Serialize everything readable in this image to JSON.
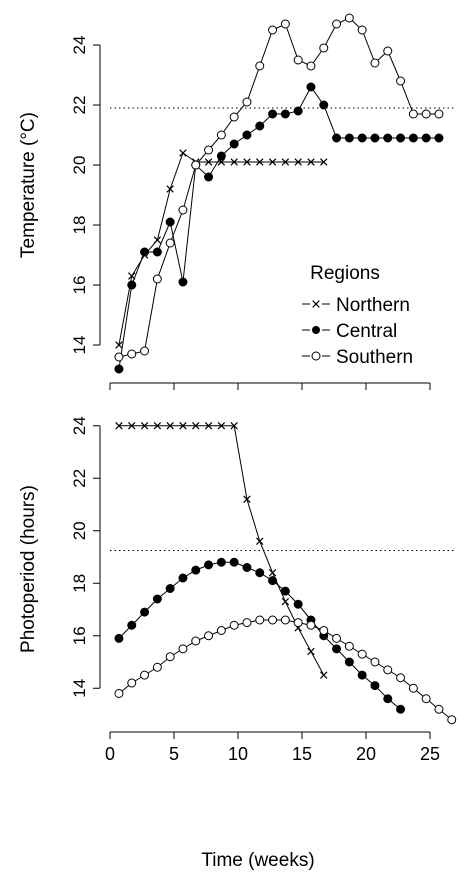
{
  "chart_data": [
    {
      "type": "line",
      "ylabel": "Temperature (°C)",
      "xlabel": "",
      "xlim": [
        0,
        27.5
      ],
      "ylim": [
        13,
        25.5
      ],
      "yticks": [
        14,
        16,
        18,
        20,
        22,
        24
      ],
      "xticks": [
        0,
        5,
        10,
        15,
        20,
        25
      ],
      "show_x_tick_labels": false,
      "grid": false,
      "reference_line": {
        "y": 21.9,
        "style": "dotted"
      },
      "legend": {
        "title": "Regions",
        "placement": "bottom-right"
      },
      "series": [
        {
          "name": "Northern",
          "marker": "x",
          "x": [
            0.7,
            1.7,
            2.7,
            3.7,
            4.7,
            5.7,
            6.7,
            7.7,
            8.7,
            9.7,
            10.7,
            11.7,
            12.7,
            13.7,
            14.7,
            15.7,
            16.7
          ],
          "y": [
            14.0,
            16.3,
            17.0,
            17.5,
            19.2,
            20.4,
            20.1,
            20.1,
            20.1,
            20.1,
            20.1,
            20.1,
            20.1,
            20.1,
            20.1,
            20.1,
            20.1
          ]
        },
        {
          "name": "Central",
          "marker": "filled-circle",
          "x": [
            0.7,
            1.7,
            2.7,
            3.7,
            4.7,
            5.7,
            6.7,
            7.7,
            8.7,
            9.7,
            10.7,
            11.7,
            12.7,
            13.7,
            14.7,
            15.7,
            16.7,
            17.7,
            18.7,
            19.7,
            20.7,
            21.7,
            22.7,
            23.7,
            24.7,
            25.7
          ],
          "y": [
            13.2,
            16.0,
            17.1,
            17.1,
            18.1,
            16.1,
            20.0,
            19.6,
            20.3,
            20.7,
            21.0,
            21.3,
            21.7,
            21.7,
            21.8,
            22.6,
            22.0,
            20.9,
            20.9,
            20.9,
            20.9,
            20.9,
            20.9,
            20.9,
            20.9,
            20.9
          ]
        },
        {
          "name": "Southern",
          "marker": "open-circle",
          "x": [
            0.7,
            1.7,
            2.7,
            3.7,
            4.7,
            5.7,
            6.7,
            7.7,
            8.7,
            9.7,
            10.7,
            11.7,
            12.7,
            13.7,
            14.7,
            15.7,
            16.7,
            17.7,
            18.7,
            19.7,
            20.7,
            21.7,
            22.7,
            23.7,
            24.7,
            25.7
          ],
          "y": [
            13.6,
            13.7,
            13.8,
            16.2,
            17.4,
            18.5,
            20.0,
            20.5,
            21.0,
            21.6,
            22.1,
            23.3,
            24.5,
            24.7,
            23.5,
            23.3,
            23.9,
            24.7,
            24.9,
            24.5,
            23.4,
            23.8,
            22.8,
            21.7,
            21.7,
            21.7
          ]
        }
      ]
    },
    {
      "type": "line",
      "ylabel": "Photoperiod (hours)",
      "xlabel": "Time (weeks)",
      "xlim": [
        0,
        27.5
      ],
      "ylim": [
        12.6,
        24.6
      ],
      "yticks": [
        14,
        16,
        18,
        20,
        22,
        24
      ],
      "xticks": [
        0,
        5,
        10,
        15,
        20,
        25
      ],
      "grid": false,
      "reference_line": {
        "y": 19.25,
        "style": "dotted"
      },
      "series": [
        {
          "name": "Northern",
          "marker": "x",
          "x": [
            0.7,
            1.7,
            2.7,
            3.7,
            4.7,
            5.7,
            6.7,
            7.7,
            8.7,
            9.7,
            10.7,
            11.7,
            12.7,
            13.7,
            14.7,
            15.7,
            16.7
          ],
          "y": [
            24.0,
            24.0,
            24.0,
            24.0,
            24.0,
            24.0,
            24.0,
            24.0,
            24.0,
            24.0,
            21.2,
            19.6,
            18.4,
            17.3,
            16.3,
            15.4,
            14.5
          ]
        },
        {
          "name": "Central",
          "marker": "filled-circle",
          "x": [
            0.7,
            1.7,
            2.7,
            3.7,
            4.7,
            5.7,
            6.7,
            7.7,
            8.7,
            9.7,
            10.7,
            11.7,
            12.7,
            13.7,
            14.7,
            15.7,
            16.7,
            17.7,
            18.7,
            19.7,
            20.7,
            21.7,
            22.7
          ],
          "y": [
            15.9,
            16.4,
            16.9,
            17.4,
            17.8,
            18.2,
            18.5,
            18.7,
            18.8,
            18.8,
            18.6,
            18.4,
            18.1,
            17.7,
            17.2,
            16.6,
            16.0,
            15.5,
            15.0,
            14.5,
            14.1,
            13.6,
            13.2
          ]
        },
        {
          "name": "Southern",
          "marker": "open-circle",
          "x": [
            0.7,
            1.7,
            2.7,
            3.7,
            4.7,
            5.7,
            6.7,
            7.7,
            8.7,
            9.7,
            10.7,
            11.7,
            12.7,
            13.7,
            14.7,
            15.7,
            16.7,
            17.7,
            18.7,
            19.7,
            20.7,
            21.7,
            22.7,
            23.7,
            24.7,
            25.7,
            26.7
          ],
          "y": [
            13.8,
            14.2,
            14.5,
            14.8,
            15.2,
            15.5,
            15.8,
            16.0,
            16.2,
            16.4,
            16.5,
            16.6,
            16.6,
            16.6,
            16.5,
            16.4,
            16.2,
            15.9,
            15.6,
            15.3,
            15.0,
            14.7,
            14.4,
            14.0,
            13.6,
            13.2,
            12.8
          ]
        }
      ]
    }
  ]
}
